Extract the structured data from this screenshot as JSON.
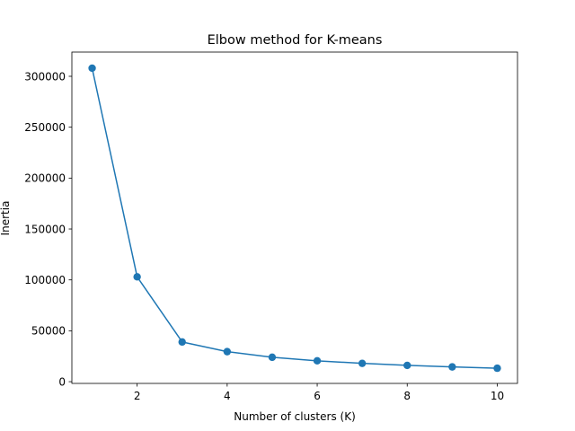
{
  "chart_data": {
    "type": "line",
    "title": "Elbow method for K-means",
    "xlabel": "Number of clusters (K)",
    "ylabel": "Inertia",
    "x": [
      1,
      2,
      3,
      4,
      5,
      6,
      7,
      8,
      9,
      10
    ],
    "series": [
      {
        "values": [
          308000,
          103000,
          39000,
          29500,
          24000,
          20500,
          18000,
          16000,
          14500,
          13200
        ],
        "color": "#1f77b4",
        "marker": "circle"
      }
    ],
    "xlim": [
      0.55,
      10.45
    ],
    "ylim": [
      -1700,
      323800
    ],
    "xticks": [
      2,
      4,
      6,
      8,
      10
    ],
    "xtick_labels": [
      "2",
      "4",
      "6",
      "8",
      "10"
    ],
    "yticks": [
      0,
      50000,
      100000,
      150000,
      200000,
      250000,
      300000
    ],
    "ytick_labels": [
      "0",
      "50000",
      "100000",
      "150000",
      "200000",
      "250000",
      "300000"
    ],
    "grid": false,
    "legend": "none"
  }
}
